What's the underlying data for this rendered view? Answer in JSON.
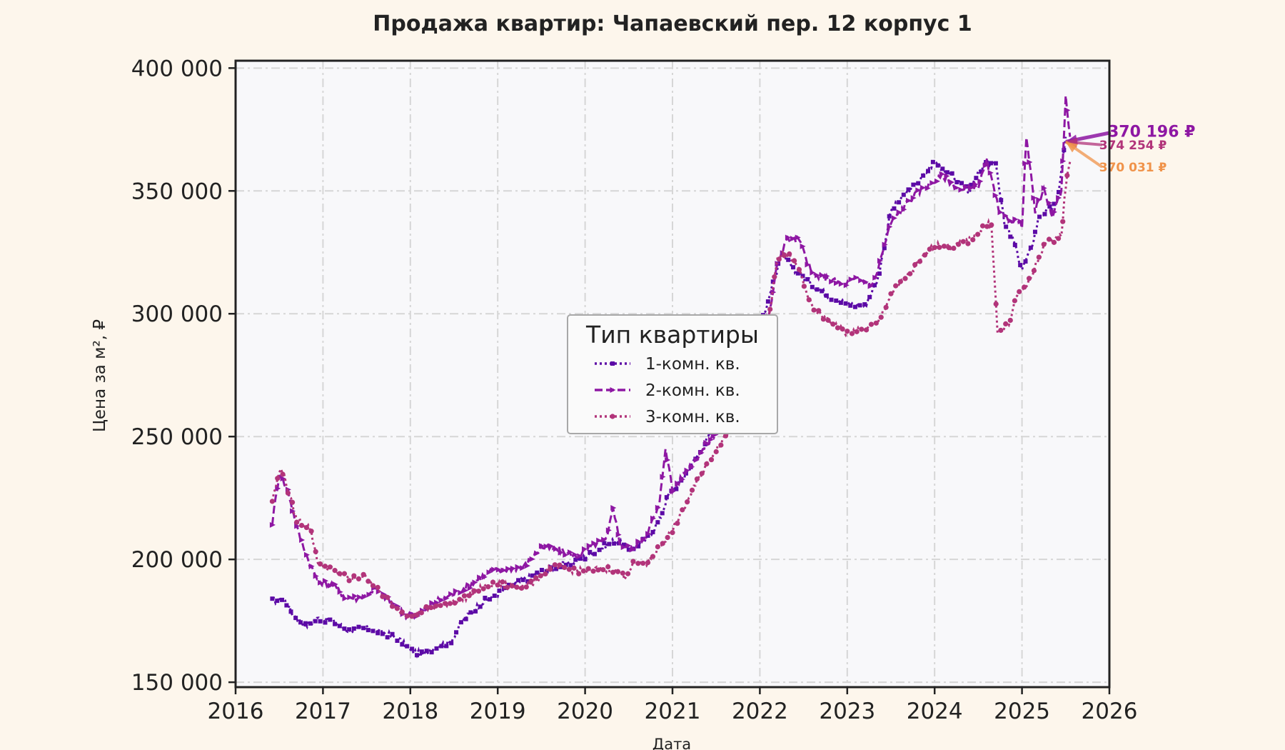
{
  "chart_data": {
    "type": "line",
    "title": "Продажа квартир: Чапаевский пер. 12 корпус 1",
    "xlabel": "Дата",
    "ylabel": "Цена за м², ₽",
    "xlim": [
      2016,
      2026
    ],
    "ylim": [
      148000,
      403000
    ],
    "x_ticks": [
      2016,
      2017,
      2018,
      2019,
      2020,
      2021,
      2022,
      2023,
      2024,
      2025,
      2026
    ],
    "x_tick_labels": [
      "2016",
      "2017",
      "2018",
      "2019",
      "2020",
      "2021",
      "2022",
      "2023",
      "2024",
      "2025",
      "2026"
    ],
    "y_ticks": [
      150000,
      200000,
      250000,
      300000,
      350000,
      400000
    ],
    "y_tick_labels": [
      "150 000",
      "200 000",
      "250 000",
      "300 000",
      "350 000",
      "400 000"
    ],
    "grid": true,
    "legend": {
      "title": "Тип квартиры",
      "position": "center",
      "entries": [
        "1-комн. кв.",
        "2-комн. кв.",
        "3-комн. кв."
      ]
    },
    "colors": {
      "s1": "#5c0aa6",
      "s2": "#8e17a3",
      "s3": "#b2347a",
      "arrow3": "#f0934a",
      "background": "#fdf6ec",
      "plot_background": "#f8f8fa"
    },
    "series": [
      {
        "name": "1-комн. кв.",
        "style": "dotted-square",
        "x": [
          2016.42,
          2016.55,
          2016.65,
          2016.8,
          2016.95,
          2017.1,
          2017.3,
          2017.5,
          2017.7,
          2017.85,
          2018.0,
          2018.15,
          2018.3,
          2018.45,
          2018.6,
          2018.8,
          2019.0,
          2019.2,
          2019.45,
          2019.65,
          2019.8,
          2020.0,
          2020.2,
          2020.35,
          2020.5,
          2020.7,
          2020.85,
          2020.95,
          2021.1,
          2021.3,
          2021.5,
          2021.7,
          2021.85,
          2022.0,
          2022.15,
          2022.25,
          2022.4,
          2022.6,
          2022.8,
          2023.0,
          2023.2,
          2023.35,
          2023.5,
          2023.7,
          2023.85,
          2024.0,
          2024.2,
          2024.4,
          2024.55,
          2024.7,
          2024.8,
          2024.9,
          2025.0,
          2025.1,
          2025.2,
          2025.3,
          2025.4,
          2025.5
        ],
        "y": [
          183000,
          184000,
          178000,
          173000,
          176000,
          175000,
          171000,
          172000,
          170000,
          168000,
          163000,
          161000,
          165000,
          166000,
          175000,
          182000,
          186000,
          190000,
          194000,
          197000,
          198000,
          201000,
          205000,
          208000,
          204000,
          208000,
          216000,
          226000,
          232000,
          243000,
          255000,
          265000,
          280000,
          295000,
          312000,
          324000,
          318000,
          312000,
          307000,
          304000,
          303000,
          314000,
          342000,
          350000,
          355000,
          362000,
          356000,
          350000,
          360000,
          362000,
          336000,
          330000,
          318000,
          326000,
          340000,
          342000,
          345000,
          372000
        ]
      },
      {
        "name": "2-комн. кв.",
        "style": "dashed-triangle",
        "x": [
          2016.42,
          2016.5,
          2016.6,
          2016.7,
          2016.85,
          2016.95,
          2017.1,
          2017.25,
          2017.4,
          2017.6,
          2017.8,
          2017.95,
          2018.1,
          2018.3,
          2018.5,
          2018.7,
          2018.9,
          2019.1,
          2019.3,
          2019.5,
          2019.7,
          2019.9,
          2020.1,
          2020.25,
          2020.32,
          2020.4,
          2020.55,
          2020.7,
          2020.85,
          2020.92,
          2021.0,
          2021.2,
          2021.4,
          2021.6,
          2021.8,
          2022.0,
          2022.1,
          2022.2,
          2022.3,
          2022.45,
          2022.6,
          2022.8,
          2022.95,
          2023.1,
          2023.3,
          2023.5,
          2023.7,
          2023.9,
          2024.1,
          2024.3,
          2024.5,
          2024.6,
          2024.75,
          2024.9,
          2025.0,
          2025.05,
          2025.15,
          2025.25,
          2025.35,
          2025.45,
          2025.5,
          2025.55
        ],
        "y": [
          215000,
          235000,
          228000,
          213000,
          198000,
          191000,
          190000,
          185000,
          184000,
          188000,
          182000,
          177000,
          178000,
          183000,
          186000,
          190000,
          195000,
          196000,
          197000,
          205000,
          204000,
          201000,
          206000,
          208000,
          222000,
          206000,
          204000,
          210000,
          222000,
          246000,
          228000,
          238000,
          247000,
          257000,
          270000,
          282000,
          298000,
          320000,
          330000,
          330000,
          316000,
          314000,
          312000,
          314000,
          312000,
          337000,
          346000,
          352000,
          356000,
          350000,
          352000,
          362000,
          340000,
          338000,
          336000,
          372000,
          342000,
          350000,
          340000,
          350000,
          388000,
          372000
        ]
      },
      {
        "name": "3-комн. кв.",
        "style": "dotted-circle",
        "x": [
          2016.42,
          2016.52,
          2016.6,
          2016.7,
          2016.85,
          2016.95,
          2017.1,
          2017.3,
          2017.5,
          2017.7,
          2017.85,
          2018.0,
          2018.2,
          2018.4,
          2018.6,
          2018.8,
          2019.0,
          2019.2,
          2019.4,
          2019.6,
          2019.8,
          2020.0,
          2020.15,
          2020.3,
          2020.45,
          2020.55,
          2020.7,
          2020.85,
          2021.0,
          2021.15,
          2021.3,
          2021.5,
          2021.7,
          2021.85,
          2022.0,
          2022.1,
          2022.2,
          2022.3,
          2022.45,
          2022.6,
          2022.8,
          2023.0,
          2023.2,
          2023.35,
          2023.5,
          2023.7,
          2023.85,
          2024.0,
          2024.2,
          2024.4,
          2024.55,
          2024.65,
          2024.72,
          2024.85,
          2024.95,
          2025.1,
          2025.25,
          2025.35,
          2025.45,
          2025.5,
          2025.55
        ],
        "y": [
          224000,
          238000,
          228000,
          216000,
          213000,
          198000,
          196000,
          192000,
          193000,
          185000,
          180000,
          177000,
          180000,
          182000,
          184000,
          188000,
          190000,
          189000,
          190000,
          197000,
          196000,
          195000,
          196000,
          196000,
          193000,
          198000,
          198000,
          205000,
          212000,
          222000,
          233000,
          245000,
          255000,
          263000,
          275000,
          298000,
          322000,
          325000,
          318000,
          302000,
          297000,
          292000,
          294000,
          296000,
          308000,
          316000,
          322000,
          328000,
          327000,
          330000,
          335000,
          337000,
          292000,
          296000,
          308000,
          314000,
          328000,
          330000,
          332000,
          352000,
          362000
        ]
      }
    ],
    "annotations": [
      {
        "text": "370 196 ₽",
        "series": "2-комн. кв.",
        "x": 2026.0,
        "y": 372000
      },
      {
        "text": "374 254 ₽",
        "series": "3-комн. кв.",
        "x": 2025.9,
        "y": 367000
      },
      {
        "text": "370 031 ₽",
        "series": "1-комн. кв.",
        "x": 2025.9,
        "y": 358000
      }
    ]
  }
}
